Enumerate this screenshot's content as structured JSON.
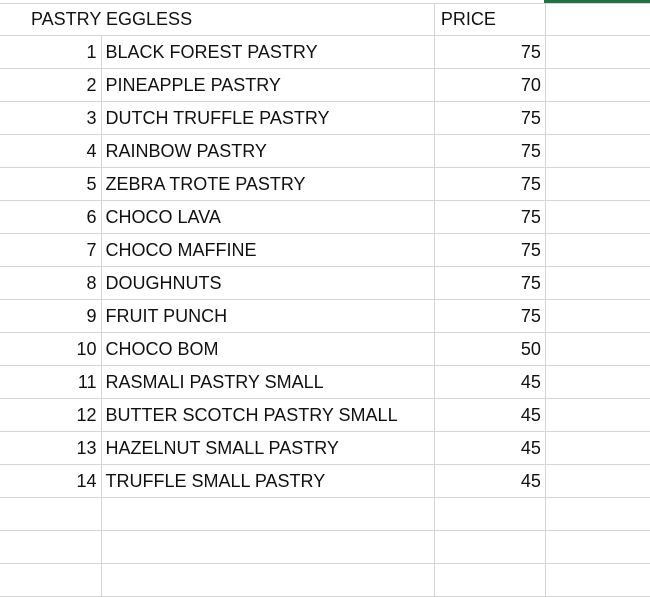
{
  "sheet": {
    "selection_color": "#217346",
    "header": {
      "title": "PASTRY EGGLESS",
      "price": "PRICE"
    },
    "rows": [
      {
        "no": "1",
        "name": "BLACK FOREST PASTRY",
        "price": "75"
      },
      {
        "no": "2",
        "name": "PINEAPPLE PASTRY",
        "price": "70"
      },
      {
        "no": "3",
        "name": "DUTCH TRUFFLE PASTRY",
        "price": "75"
      },
      {
        "no": "4",
        "name": "RAINBOW PASTRY",
        "price": "75"
      },
      {
        "no": "5",
        "name": "ZEBRA TROTE PASTRY",
        "price": "75"
      },
      {
        "no": "6",
        "name": "CHOCO LAVA",
        "price": "75"
      },
      {
        "no": "7",
        "name": "CHOCO MAFFINE",
        "price": "75"
      },
      {
        "no": "8",
        "name": "DOUGHNUTS",
        "price": "75"
      },
      {
        "no": "9",
        "name": "FRUIT PUNCH",
        "price": "75"
      },
      {
        "no": "10",
        "name": "CHOCO BOM",
        "price": "50"
      },
      {
        "no": "11",
        "name": "RASMALI PASTRY SMALL",
        "price": "45"
      },
      {
        "no": "12",
        "name": "BUTTER SCOTCH PASTRY SMALL",
        "price": "45"
      },
      {
        "no": "13",
        "name": "HAZELNUT SMALL PASTRY",
        "price": "45"
      },
      {
        "no": "14",
        "name": "TRUFFLE SMALL PASTRY",
        "price": "45"
      }
    ]
  }
}
